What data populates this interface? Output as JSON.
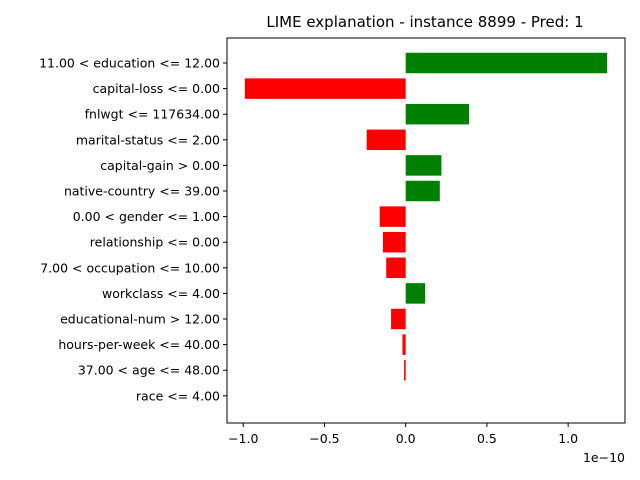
{
  "chart_data": {
    "type": "bar",
    "orientation": "horizontal",
    "title": "LIME explanation - instance 8899 - Pred: 1",
    "xlabel": "",
    "ylabel": "",
    "x_offset_label": "1e−10",
    "xlim": [
      -1.1,
      1.35
    ],
    "xticks": [
      -1.0,
      -0.5,
      0.0,
      0.5,
      1.0
    ],
    "xtick_labels": [
      "−1.0",
      "−0.5",
      "0.0",
      "0.5",
      "1.0"
    ],
    "grid": false,
    "categories": [
      "11.00 < education <= 12.00",
      "capital-loss <= 0.00",
      "fnlwgt <= 117634.00",
      "marital-status <= 2.00",
      "capital-gain > 0.00",
      "native-country <= 39.00",
      "0.00 < gender <= 1.00",
      "relationship <= 0.00",
      "7.00 < occupation <= 10.00",
      "workclass <= 4.00",
      "educational-num > 12.00",
      "hours-per-week <= 40.00",
      "37.00 < age <= 48.00",
      "race <= 4.00"
    ],
    "values": [
      1.24,
      -0.99,
      0.39,
      -0.24,
      0.22,
      0.21,
      -0.16,
      -0.14,
      -0.12,
      0.12,
      -0.09,
      -0.02,
      -0.01,
      0.0
    ],
    "colors": {
      "positive": "#008000",
      "negative": "#ff0000"
    }
  }
}
